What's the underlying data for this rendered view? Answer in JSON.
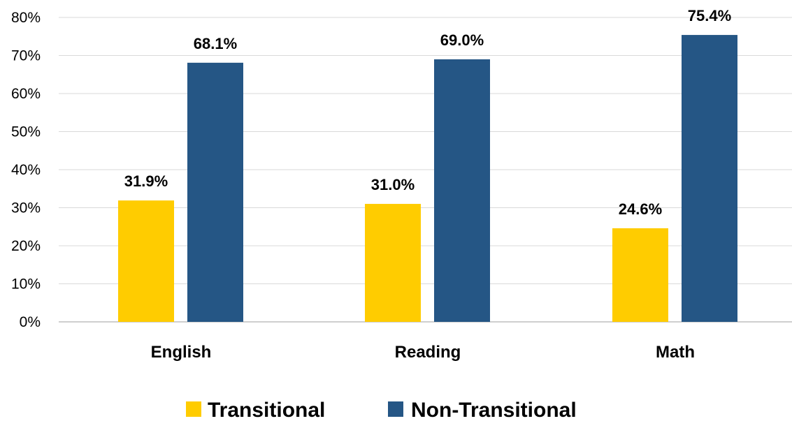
{
  "chart_data": {
    "type": "bar",
    "categories": [
      "English",
      "Reading",
      "Math"
    ],
    "series": [
      {
        "name": "Transitional",
        "values": [
          31.9,
          31.0,
          24.6
        ],
        "color": "#FFCC00"
      },
      {
        "name": "Non-Transitional",
        "values": [
          68.1,
          69.0,
          75.4
        ],
        "color": "#255685"
      }
    ],
    "value_labels": [
      [
        "31.9%",
        "31.0%",
        "24.6%"
      ],
      [
        "68.1%",
        "69.0%",
        "75.4%"
      ]
    ],
    "ylim": [
      0,
      80
    ],
    "yticks": [
      "0%",
      "10%",
      "20%",
      "30%",
      "40%",
      "50%",
      "60%",
      "70%",
      "80%"
    ],
    "grid": true,
    "legend_position": "bottom",
    "title": "",
    "xlabel": "",
    "ylabel": ""
  }
}
